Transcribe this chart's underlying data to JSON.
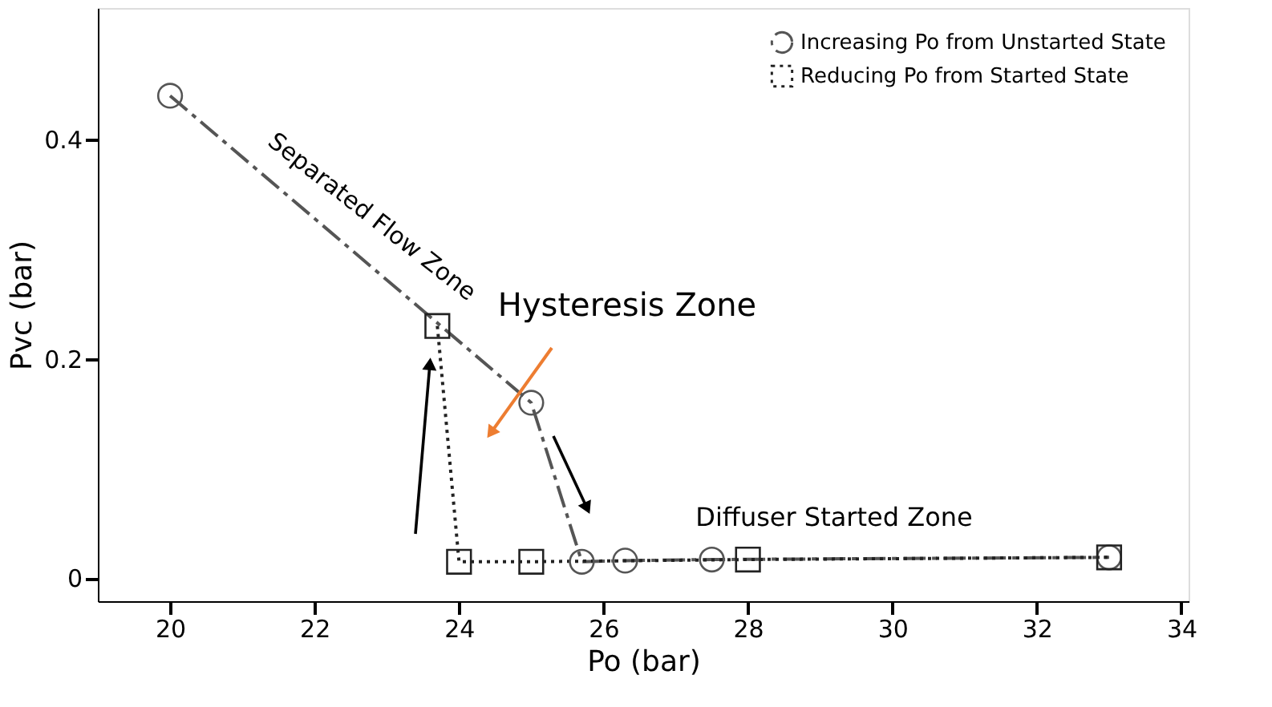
{
  "chart_data": {
    "type": "line",
    "xlabel": "Po (bar)",
    "ylabel": "Pvc (bar)",
    "xlim": [
      19,
      34.1
    ],
    "xticks": [
      20,
      22,
      24,
      26,
      28,
      30,
      32,
      34
    ],
    "ylim": [
      -0.021,
      0.52
    ],
    "yticks": [
      {
        "value": 0,
        "label": "0"
      },
      {
        "value": 0.2,
        "label": "0.2"
      },
      {
        "value": 0.4,
        "label": "0.4"
      }
    ],
    "grid": false,
    "legend": "top right",
    "series": [
      {
        "name": "Increasing Po from Unstarted State",
        "color": "#555555",
        "marker": "circle",
        "line_style": "dashed",
        "x": [
          20,
          25,
          25.7,
          26.3,
          27.5,
          33
        ],
        "values": [
          0.44,
          0.16,
          0.015,
          0.016,
          0.017,
          0.019
        ]
      },
      {
        "name": "Reducing Po from Started State",
        "color": "#222222",
        "marker": "square",
        "line_style": "dotted",
        "x": [
          23.7,
          24,
          25,
          28,
          33
        ],
        "values": [
          0.23,
          0.015,
          0.015,
          0.017,
          0.019
        ]
      }
    ],
    "annotations": [
      "Separated Flow Zone",
      "Hysteresis Zone",
      "Diffuser Started Zone"
    ]
  }
}
